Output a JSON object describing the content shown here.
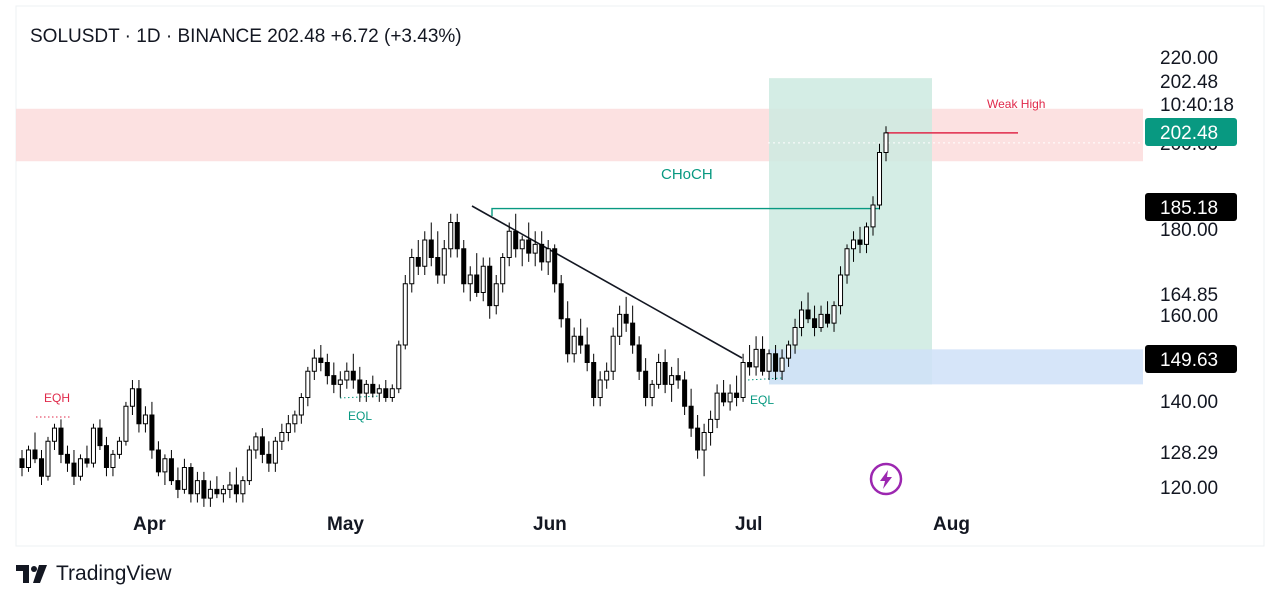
{
  "header": {
    "symbol": "SOLUSDT",
    "interval": "1D",
    "exchange": "BINANCE",
    "price": "202.48",
    "change": "+6.72",
    "change_pct": "(+3.43%)"
  },
  "price_axis": {
    "labels": [
      "220.00",
      "202.48",
      "180.00",
      "164.85",
      "160.00",
      "140.00",
      "128.29",
      "120.00"
    ],
    "countdown": "10:40:18",
    "hidden_label": "200.00",
    "tags": [
      {
        "label": "202.48",
        "color": "#089981"
      },
      {
        "label": "185.18",
        "color": "#000000"
      },
      {
        "label": "149.63",
        "color": "#000000"
      }
    ]
  },
  "time_axis": {
    "labels": [
      "Apr",
      "May",
      "Jun",
      "Jul",
      "Aug"
    ]
  },
  "annotations": {
    "eqh": "EQH",
    "eql_left": "EQL",
    "eql_right": "EQL",
    "choch": "CHoCH",
    "weak_high": "Weak High"
  },
  "colors": {
    "up": "#ffffff",
    "down": "#000000",
    "supply_zone": "#fcdcdc",
    "demand_zone": "#cfe0f8",
    "range_box": "#cdeae0",
    "choch_line": "#089981",
    "weak_high_line": "#e0294a"
  },
  "icons": {
    "lightning": "lightning-icon",
    "logo": "tradingview-logo-icon"
  },
  "brand": {
    "name": "TradingView"
  },
  "chart_data": {
    "type": "candlestick",
    "symbol": "SOLUSDT",
    "interval": "1D",
    "x_labels": [
      "Apr",
      "May",
      "Jun",
      "Jul",
      "Aug"
    ],
    "ylim": [
      114,
      226
    ],
    "grid": false,
    "zones": {
      "supply": [
        196,
        208
      ],
      "demand": [
        145,
        153
      ],
      "range_box_price": [
        145,
        215
      ]
    },
    "levels": {
      "choch": 185.18,
      "weak_high": 202.48
    },
    "ohlc": [
      [
        128,
        130,
        124,
        126
      ],
      [
        126,
        131,
        125,
        130
      ],
      [
        130,
        134,
        127,
        128
      ],
      [
        128,
        130,
        122,
        124
      ],
      [
        124,
        133,
        123,
        132
      ],
      [
        132,
        136,
        130,
        135
      ],
      [
        135,
        137,
        127,
        129
      ],
      [
        129,
        131,
        125,
        127
      ],
      [
        127,
        130,
        122,
        124
      ],
      [
        124,
        129,
        123,
        128
      ],
      [
        128,
        131,
        126,
        127
      ],
      [
        127,
        136,
        126,
        135
      ],
      [
        135,
        137,
        130,
        131
      ],
      [
        131,
        133,
        124,
        126
      ],
      [
        126,
        130,
        124,
        129
      ],
      [
        129,
        133,
        128,
        132
      ],
      [
        132,
        141,
        131,
        140
      ],
      [
        140,
        146,
        138,
        144
      ],
      [
        144,
        146,
        134,
        136
      ],
      [
        136,
        140,
        134,
        138
      ],
      [
        138,
        141,
        128,
        130
      ],
      [
        130,
        132,
        124,
        125
      ],
      [
        125,
        129,
        122,
        128
      ],
      [
        128,
        130,
        122,
        123
      ],
      [
        123,
        126,
        119,
        121
      ],
      [
        121,
        128,
        120,
        126
      ],
      [
        126,
        127,
        118,
        120
      ],
      [
        120,
        125,
        118,
        123
      ],
      [
        123,
        125,
        117,
        119
      ],
      [
        119,
        123,
        117,
        121
      ],
      [
        121,
        124,
        119,
        120
      ],
      [
        120,
        122,
        118,
        121
      ],
      [
        121,
        125,
        119,
        122
      ],
      [
        122,
        126,
        118,
        120
      ],
      [
        120,
        124,
        118,
        123
      ],
      [
        123,
        131,
        122,
        130
      ],
      [
        130,
        134,
        128,
        133
      ],
      [
        133,
        135,
        127,
        129
      ],
      [
        129,
        132,
        125,
        127
      ],
      [
        127,
        133,
        125,
        132
      ],
      [
        132,
        136,
        130,
        134
      ],
      [
        134,
        138,
        132,
        136
      ],
      [
        136,
        139,
        134,
        138
      ],
      [
        138,
        143,
        136,
        142
      ],
      [
        142,
        149,
        140,
        148
      ],
      [
        148,
        153,
        146,
        151
      ],
      [
        151,
        154,
        148,
        150
      ],
      [
        150,
        152,
        145,
        147
      ],
      [
        147,
        150,
        143,
        145
      ],
      [
        145,
        148,
        142,
        146
      ],
      [
        146,
        150,
        144,
        148
      ],
      [
        148,
        152,
        144,
        146
      ],
      [
        146,
        149,
        141,
        143
      ],
      [
        143,
        146,
        141,
        145
      ],
      [
        145,
        147,
        142,
        143
      ],
      [
        143,
        145,
        141,
        144
      ],
      [
        144,
        146,
        141,
        142
      ],
      [
        142,
        145,
        141,
        144
      ],
      [
        144,
        155,
        143,
        154
      ],
      [
        154,
        170,
        153,
        168
      ],
      [
        168,
        176,
        166,
        174
      ],
      [
        174,
        178,
        170,
        172
      ],
      [
        172,
        180,
        170,
        178
      ],
      [
        178,
        182,
        172,
        174
      ],
      [
        174,
        180,
        168,
        170
      ],
      [
        170,
        178,
        168,
        176
      ],
      [
        176,
        184,
        174,
        182
      ],
      [
        182,
        184,
        174,
        176
      ],
      [
        176,
        178,
        166,
        168
      ],
      [
        168,
        172,
        164,
        170
      ],
      [
        170,
        175,
        165,
        166
      ],
      [
        166,
        174,
        164,
        172
      ],
      [
        172,
        174,
        160,
        163
      ],
      [
        163,
        170,
        161,
        168
      ],
      [
        168,
        175,
        166,
        174
      ],
      [
        174,
        182,
        172,
        180
      ],
      [
        180,
        184,
        174,
        176
      ],
      [
        176,
        179,
        172,
        178
      ],
      [
        178,
        182,
        173,
        175
      ],
      [
        175,
        180,
        172,
        177
      ],
      [
        177,
        180,
        171,
        173
      ],
      [
        173,
        178,
        170,
        176
      ],
      [
        176,
        177,
        166,
        168
      ],
      [
        168,
        170,
        158,
        160
      ],
      [
        160,
        164,
        150,
        152
      ],
      [
        152,
        158,
        150,
        156
      ],
      [
        156,
        160,
        152,
        154
      ],
      [
        154,
        158,
        148,
        150
      ],
      [
        150,
        152,
        140,
        142
      ],
      [
        142,
        148,
        140,
        146
      ],
      [
        146,
        150,
        144,
        148
      ],
      [
        148,
        158,
        146,
        156
      ],
      [
        156,
        163,
        154,
        161
      ],
      [
        161,
        165,
        157,
        159
      ],
      [
        159,
        163,
        152,
        154
      ],
      [
        154,
        156,
        146,
        148
      ],
      [
        148,
        151,
        140,
        142
      ],
      [
        142,
        146,
        140,
        145
      ],
      [
        145,
        152,
        144,
        150
      ],
      [
        150,
        153,
        143,
        145
      ],
      [
        145,
        149,
        141,
        147
      ],
      [
        147,
        151,
        144,
        146
      ],
      [
        146,
        148,
        138,
        140
      ],
      [
        140,
        144,
        133,
        135
      ],
      [
        135,
        138,
        128,
        130
      ],
      [
        130,
        136,
        124,
        134
      ],
      [
        134,
        139,
        131,
        137
      ],
      [
        137,
        145,
        135,
        143
      ],
      [
        143,
        146,
        140,
        141
      ],
      [
        141,
        145,
        139,
        143
      ],
      [
        143,
        147,
        140,
        142
      ],
      [
        142,
        152,
        141,
        150
      ],
      [
        150,
        154,
        147,
        149
      ],
      [
        149,
        156,
        147,
        153
      ],
      [
        153,
        156,
        147,
        148
      ],
      [
        148,
        153,
        146,
        152
      ],
      [
        152,
        154,
        146,
        148
      ],
      [
        148,
        153,
        146,
        151
      ],
      [
        151,
        155,
        149,
        154
      ],
      [
        154,
        160,
        152,
        158
      ],
      [
        158,
        164,
        156,
        162
      ],
      [
        162,
        166,
        159,
        160
      ],
      [
        160,
        163,
        156,
        158
      ],
      [
        158,
        163,
        157,
        161
      ],
      [
        161,
        164,
        158,
        159
      ],
      [
        159,
        164,
        157,
        163
      ],
      [
        163,
        172,
        161,
        170
      ],
      [
        170,
        177,
        168,
        176
      ],
      [
        176,
        180,
        173,
        178
      ],
      [
        178,
        181,
        175,
        177
      ],
      [
        177,
        182,
        175,
        181
      ],
      [
        181,
        188,
        179,
        186
      ],
      [
        186,
        200,
        185,
        198
      ],
      [
        198,
        204,
        196,
        202.48
      ]
    ]
  }
}
